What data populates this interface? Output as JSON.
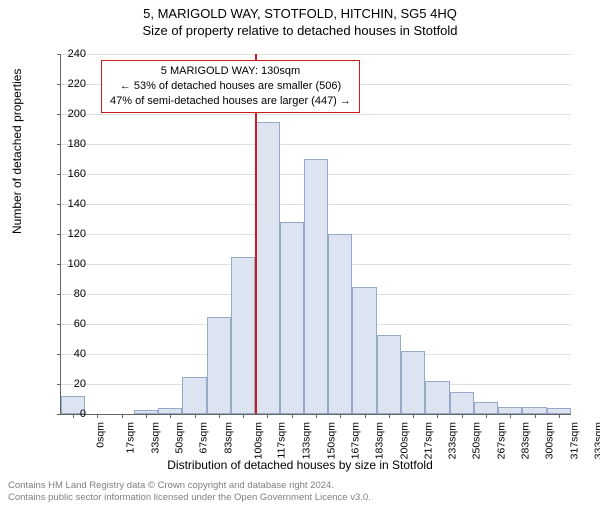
{
  "titles": {
    "main": "5, MARIGOLD WAY, STOTFOLD, HITCHIN, SG5 4HQ",
    "sub": "Size of property relative to detached houses in Stotfold"
  },
  "axes": {
    "y_label": "Number of detached properties",
    "x_label": "Distribution of detached houses by size in Stotfold",
    "ylim": [
      0,
      240
    ],
    "ytick_step": 20,
    "x_categories": [
      "0sqm",
      "17sqm",
      "33sqm",
      "50sqm",
      "67sqm",
      "83sqm",
      "100sqm",
      "117sqm",
      "133sqm",
      "150sqm",
      "167sqm",
      "183sqm",
      "200sqm",
      "217sqm",
      "233sqm",
      "250sqm",
      "267sqm",
      "283sqm",
      "300sqm",
      "317sqm",
      "333sqm"
    ]
  },
  "series": {
    "type": "histogram",
    "bar_fill": "#dce4f2",
    "bar_border": "#97a8c8",
    "values": [
      12,
      0,
      0,
      3,
      4,
      25,
      65,
      105,
      195,
      128,
      170,
      120,
      85,
      53,
      42,
      22,
      15,
      8,
      5,
      5,
      4
    ]
  },
  "reference": {
    "color": "#c81e1e",
    "position_index": 8,
    "callout": {
      "line1": "5 MARIGOLD WAY: 130sqm",
      "line2": "← 53% of detached houses are smaller (506)",
      "line3": "47% of semi-detached houses are larger (447) →"
    }
  },
  "style": {
    "background": "#ffffff",
    "grid_color": "#e0e0e0",
    "axis_color": "#666666",
    "tick_fontsize": 11,
    "label_fontsize": 12,
    "title_fontsize": 13
  },
  "footer": {
    "line1": "Contains HM Land Registry data © Crown copyright and database right 2024.",
    "line2": "Contains public sector information licensed under the Open Government Licence v3.0."
  }
}
